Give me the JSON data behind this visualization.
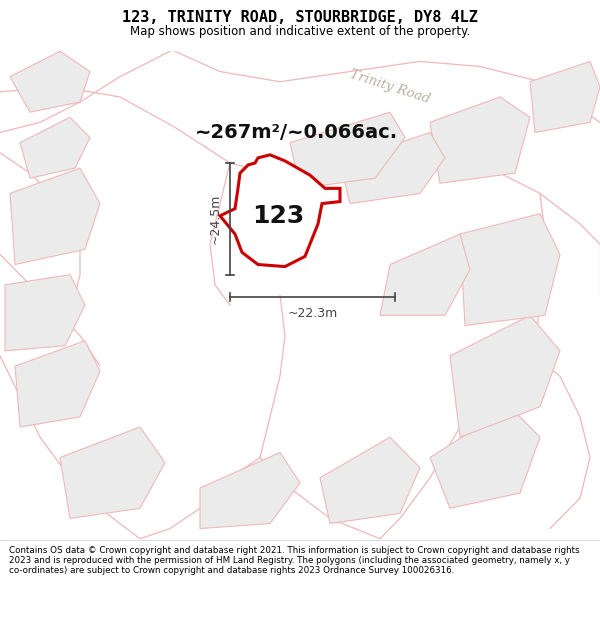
{
  "title": "123, TRINITY ROAD, STOURBRIDGE, DY8 4LZ",
  "subtitle": "Map shows position and indicative extent of the property.",
  "area_text": "~267m²/~0.066ac.",
  "property_number": "123",
  "dim_width": "~22.3m",
  "dim_height": "~24.5m",
  "footer": "Contains OS data © Crown copyright and database right 2021. This information is subject to Crown copyright and database rights 2023 and is reproduced with the permission of HM Land Registry. The polygons (including the associated geometry, namely x, y co-ordinates) are subject to Crown copyright and database rights 2023 Ordnance Survey 100026316.",
  "road_label": "Trinity Road",
  "header_bg": "#ffffff",
  "footer_bg": "#ffffff",
  "map_bg": "#f8f8f8",
  "property_fill": "#ffffff",
  "property_stroke": "#cc0000",
  "neighbor_stroke": "#f0b8b8",
  "neighbor_fill": "#ebebeb",
  "road_stroke": "#f0b8b8",
  "dim_color": "#444444",
  "road_label_color": "#b8b0a0",
  "area_text_color": "#111111"
}
